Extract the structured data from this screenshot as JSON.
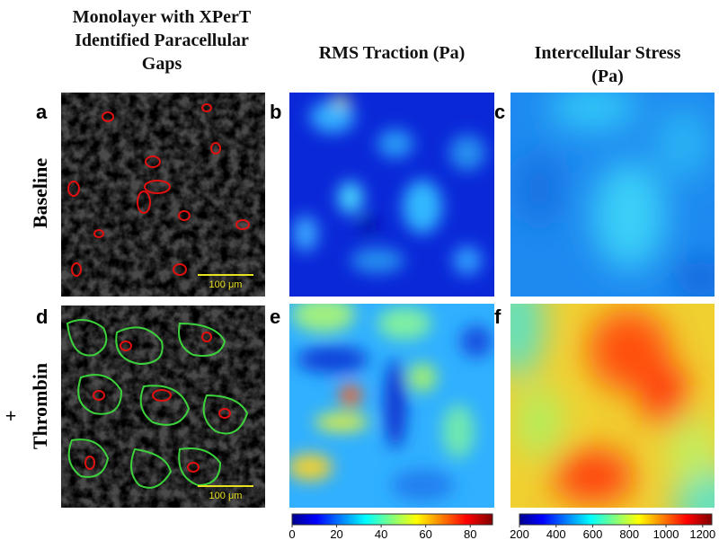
{
  "column_titles": [
    "Monolayer with XPerT Identified Paracellular Gaps",
    "RMS Traction (Pa)",
    "Intercellular Stress (Pa)"
  ],
  "row_labels": [
    "Baseline",
    "Thrombin"
  ],
  "row_prefix": "+",
  "panel_letters": [
    "a",
    "b",
    "c",
    "d",
    "e",
    "f"
  ],
  "scale_bar_labels": [
    "100 μm",
    "100 μm"
  ],
  "colorbars": [
    {
      "lim": [
        0,
        90
      ],
      "ticks": [
        0,
        20,
        40,
        60,
        80
      ]
    },
    {
      "lim": [
        200,
        1250
      ],
      "ticks": [
        200,
        400,
        600,
        800,
        1000,
        1200
      ]
    }
  ]
}
